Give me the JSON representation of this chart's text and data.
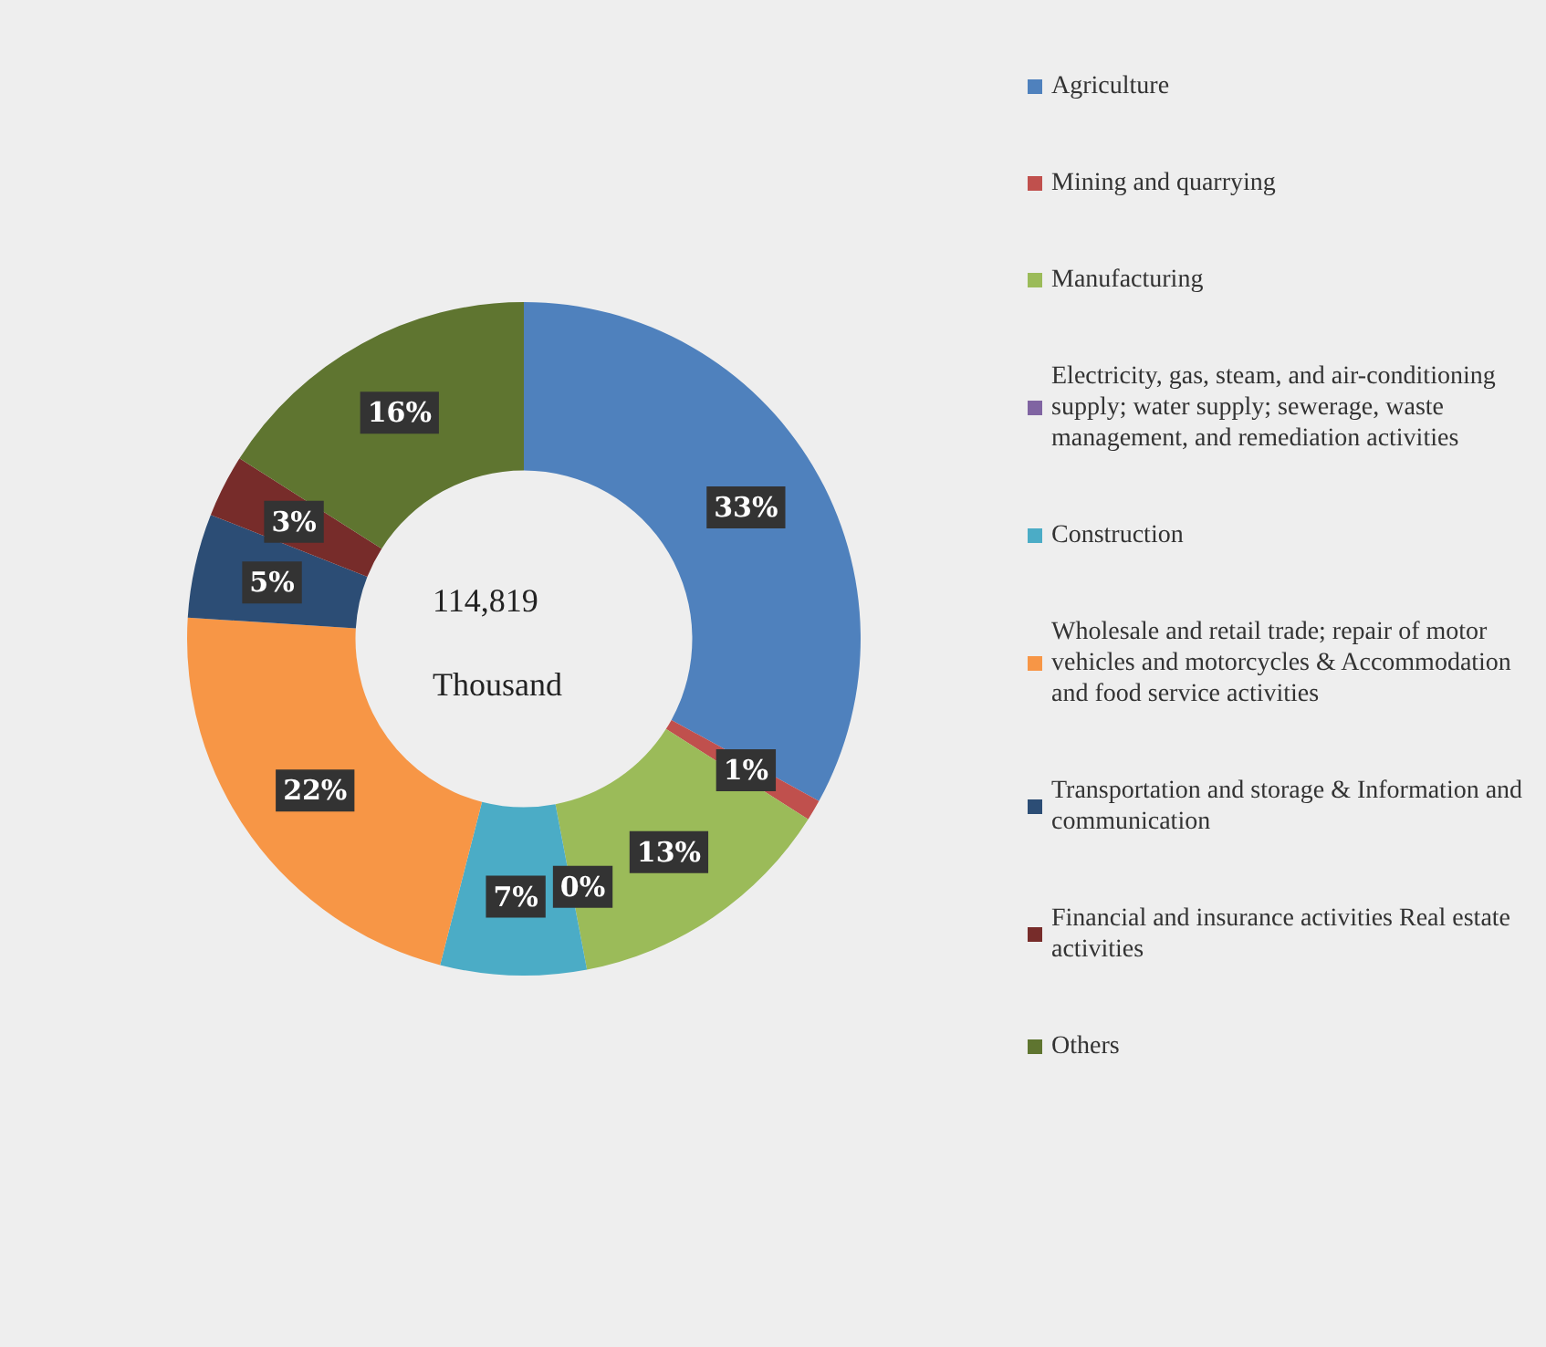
{
  "chart_data": {
    "type": "donut",
    "categories": [
      "Agriculture",
      "Mining and quarrying",
      "Manufacturing",
      "Electricity, gas, steam, and air-conditioning supply; water supply; sewerage, waste management, and remediation activities",
      "Construction",
      "Wholesale and retail trade; repair of motor vehicles and motorcycles & Accommodation and food service activities",
      "Transportation and storage & Information and communication",
      "Financial and insurance activities Real estate activities",
      "Others"
    ],
    "values": [
      33,
      1,
      13,
      0,
      7,
      22,
      5,
      3,
      16
    ],
    "value_labels": [
      "33%",
      "1%",
      "13%",
      "0%",
      "7%",
      "22%",
      "5%",
      "3%",
      "16%"
    ],
    "colors": [
      "#4f81bd",
      "#c0504d",
      "#9bbb59",
      "#8064a2",
      "#4bacc6",
      "#f79646",
      "#2c4d75",
      "#772c2a",
      "#5f7530"
    ],
    "annotations": [
      "114,819",
      "Thousand"
    ],
    "legend": "right"
  }
}
